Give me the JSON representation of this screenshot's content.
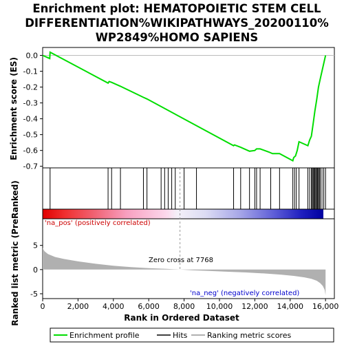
{
  "chart_data": {
    "type": "line",
    "title_lines": [
      "Enrichment plot: HEMATOPOIETIC STEM CELL",
      "DIFFERENTIATION%WIKIPATHWAYS_20200110%",
      "WP2849%HOMO SAPIENS"
    ],
    "xlabel": "Rank in Ordered Dataset",
    "ylabel_top": "Enrichment score (ES)",
    "ylabel_bottom": "Ranked list metric (PreRanked)",
    "x_ticks": [
      0,
      2000,
      4000,
      6000,
      8000,
      10000,
      12000,
      14000,
      16000
    ],
    "x_tick_labels": [
      "0",
      "2,000",
      "4,000",
      "6,000",
      "8,000",
      "10,000",
      "12,000",
      "14,000",
      "16,000"
    ],
    "xlim": [
      0,
      16500
    ],
    "es_ylim": [
      -0.71,
      0.05
    ],
    "es_y_ticks": [
      0.0,
      -0.1,
      -0.2,
      -0.3,
      -0.4,
      -0.5,
      -0.6,
      -0.7
    ],
    "es_y_tick_labels": [
      "0.0",
      "-0.1",
      "-0.2",
      "-0.3",
      "-0.4",
      "-0.5",
      "-0.6",
      "-0.7"
    ],
    "metric_ylim": [
      -6,
      10.5
    ],
    "metric_y_ticks": [
      5,
      0,
      -5
    ],
    "metric_y_tick_labels": [
      "5",
      "0",
      "-5"
    ],
    "series": [
      {
        "name": "Enrichment profile",
        "color": "#00dd00",
        "x": [
          0,
          400,
          420,
          3700,
          3760,
          3900,
          4400,
          5700,
          5900,
          10800,
          10850,
          11200,
          11700,
          12000,
          12100,
          12300,
          12800,
          13000,
          13400,
          14150,
          14200,
          14300,
          14400,
          14500,
          15000,
          15100,
          15200,
          15250,
          15300,
          15400,
          15500,
          15600,
          15700,
          15800,
          15900,
          16000
        ],
        "y": [
          0.0,
          -0.02,
          0.02,
          -0.175,
          -0.165,
          -0.17,
          -0.195,
          -0.265,
          -0.275,
          -0.57,
          -0.565,
          -0.58,
          -0.605,
          -0.6,
          -0.59,
          -0.59,
          -0.61,
          -0.62,
          -0.62,
          -0.665,
          -0.645,
          -0.635,
          -0.6,
          -0.545,
          -0.57,
          -0.535,
          -0.51,
          -0.47,
          -0.43,
          -0.35,
          -0.28,
          -0.2,
          -0.15,
          -0.1,
          -0.05,
          0.0
        ]
      },
      {
        "name": "Hits",
        "color": "#000000",
        "x": [
          420,
          3700,
          3900,
          4400,
          5700,
          5900,
          6700,
          6900,
          7100,
          7300,
          7500,
          8000,
          8700,
          10800,
          11200,
          11700,
          12000,
          12100,
          12300,
          12900,
          13400,
          14150,
          14250,
          14350,
          14500,
          15000,
          15100,
          15200,
          15250,
          15300,
          15350,
          15400,
          15450,
          15500,
          15550,
          15600,
          15650,
          15700,
          15800,
          15900,
          16000
        ]
      },
      {
        "name": "Ranking metric scores",
        "color": "#b0b0b0",
        "x": [
          0,
          100,
          300,
          700,
          1200,
          2000,
          3000,
          4000,
          5000,
          6000,
          7000,
          7768,
          8500,
          9500,
          10500,
          11500,
          12500,
          13500,
          14200,
          14800,
          15200,
          15500,
          15700,
          15850,
          15950,
          16000
        ],
        "y": [
          4.5,
          3.8,
          3.2,
          2.6,
          2.2,
          1.7,
          1.2,
          0.8,
          0.5,
          0.3,
          0.15,
          0.0,
          -0.15,
          -0.3,
          -0.45,
          -0.6,
          -0.8,
          -1.05,
          -1.3,
          -1.6,
          -1.9,
          -2.3,
          -2.8,
          -3.4,
          -4.2,
          -5.3
        ]
      }
    ],
    "annotations": {
      "pos": "'na_pos' (positively correlated)",
      "neg": "'na_neg' (negatively correlated)",
      "zero": "Zero cross at 7768"
    },
    "zero_cross": 7768,
    "legend": [
      "Enrichment profile",
      "Hits",
      "Ranking metric scores"
    ],
    "legend_position": "bottom"
  }
}
